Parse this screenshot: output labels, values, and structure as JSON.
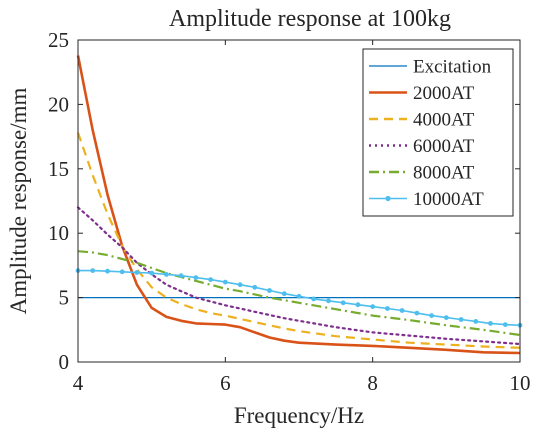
{
  "chart_data": {
    "type": "line",
    "title": "Amplitude response at 100kg",
    "xlabel": "Frequency/Hz",
    "ylabel": "Amplitude response/mm",
    "xlim": [
      4,
      10
    ],
    "ylim": [
      0,
      25
    ],
    "xticks": [
      "4",
      "6",
      "8",
      "10"
    ],
    "yticks": [
      "0",
      "5",
      "10",
      "15",
      "20",
      "25"
    ],
    "grid": false,
    "legend_position": "top-right",
    "series": [
      {
        "name": "Excitation",
        "color": "#0072BD",
        "style": "solid",
        "x": [
          4,
          10
        ],
        "y": [
          5,
          5
        ]
      },
      {
        "name": "2000AT",
        "color": "#D95319",
        "style": "solid",
        "x": [
          4.0,
          4.2,
          4.4,
          4.6,
          4.8,
          5.0,
          5.2,
          5.4,
          5.6,
          5.8,
          6.0,
          6.2,
          6.4,
          6.6,
          6.8,
          7.0,
          7.5,
          8.0,
          8.5,
          9.0,
          9.5,
          10.0
        ],
        "y": [
          23.8,
          18.0,
          13.0,
          9.0,
          6.0,
          4.2,
          3.5,
          3.2,
          3.0,
          2.95,
          2.9,
          2.7,
          2.3,
          1.9,
          1.65,
          1.5,
          1.35,
          1.25,
          1.1,
          0.95,
          0.75,
          0.7
        ]
      },
      {
        "name": "4000AT",
        "color": "#EDB120",
        "style": "dash",
        "x": [
          4.0,
          4.2,
          4.4,
          4.6,
          4.8,
          5.0,
          5.2,
          5.4,
          5.6,
          5.8,
          6.0,
          6.2,
          6.4,
          6.6,
          6.8,
          7.0,
          7.5,
          8.0,
          8.5,
          9.0,
          9.5,
          10.0
        ],
        "y": [
          17.8,
          14.5,
          11.5,
          9.0,
          7.2,
          5.8,
          5.0,
          4.5,
          4.1,
          3.8,
          3.6,
          3.35,
          3.1,
          2.85,
          2.6,
          2.4,
          2.0,
          1.75,
          1.5,
          1.35,
          1.2,
          1.1
        ]
      },
      {
        "name": "6000AT",
        "color": "#7E2F8E",
        "style": "dot",
        "x": [
          4.0,
          4.2,
          4.4,
          4.6,
          4.8,
          5.0,
          5.2,
          5.4,
          5.6,
          5.8,
          6.0,
          6.2,
          6.4,
          6.6,
          6.8,
          7.0,
          7.5,
          8.0,
          8.5,
          9.0,
          9.5,
          10.0
        ],
        "y": [
          12.0,
          11.0,
          9.9,
          8.9,
          7.7,
          6.8,
          6.0,
          5.5,
          5.0,
          4.7,
          4.4,
          4.15,
          3.9,
          3.65,
          3.4,
          3.2,
          2.7,
          2.3,
          2.05,
          1.8,
          1.6,
          1.4
        ]
      },
      {
        "name": "8000AT",
        "color": "#77AC30",
        "style": "dashdot",
        "x": [
          4.0,
          4.2,
          4.4,
          4.6,
          4.8,
          5.0,
          5.2,
          5.4,
          5.6,
          5.8,
          6.0,
          6.2,
          6.4,
          6.6,
          6.8,
          7.0,
          7.5,
          8.0,
          8.5,
          9.0,
          9.5,
          10.0
        ],
        "y": [
          8.6,
          8.5,
          8.3,
          8.0,
          7.7,
          7.3,
          6.9,
          6.6,
          6.3,
          6.0,
          5.7,
          5.5,
          5.25,
          5.0,
          4.8,
          4.6,
          4.1,
          3.6,
          3.25,
          2.85,
          2.5,
          2.1
        ]
      },
      {
        "name": "10000AT",
        "color": "#4DBEEE",
        "style": "solid-markers",
        "x": [
          4.0,
          4.2,
          4.4,
          4.6,
          4.8,
          5.0,
          5.2,
          5.4,
          5.6,
          5.8,
          6.0,
          6.2,
          6.4,
          6.6,
          6.8,
          7.0,
          7.2,
          7.4,
          7.6,
          7.8,
          8.0,
          8.2,
          8.4,
          8.6,
          8.8,
          9.0,
          9.2,
          9.4,
          9.6,
          9.8,
          10.0
        ],
        "y": [
          7.1,
          7.1,
          7.05,
          7.0,
          6.95,
          6.9,
          6.8,
          6.7,
          6.55,
          6.4,
          6.2,
          6.0,
          5.8,
          5.55,
          5.3,
          5.1,
          4.9,
          4.75,
          4.6,
          4.45,
          4.3,
          4.15,
          4.0,
          3.8,
          3.6,
          3.45,
          3.3,
          3.15,
          3.0,
          2.9,
          2.85
        ]
      }
    ]
  }
}
